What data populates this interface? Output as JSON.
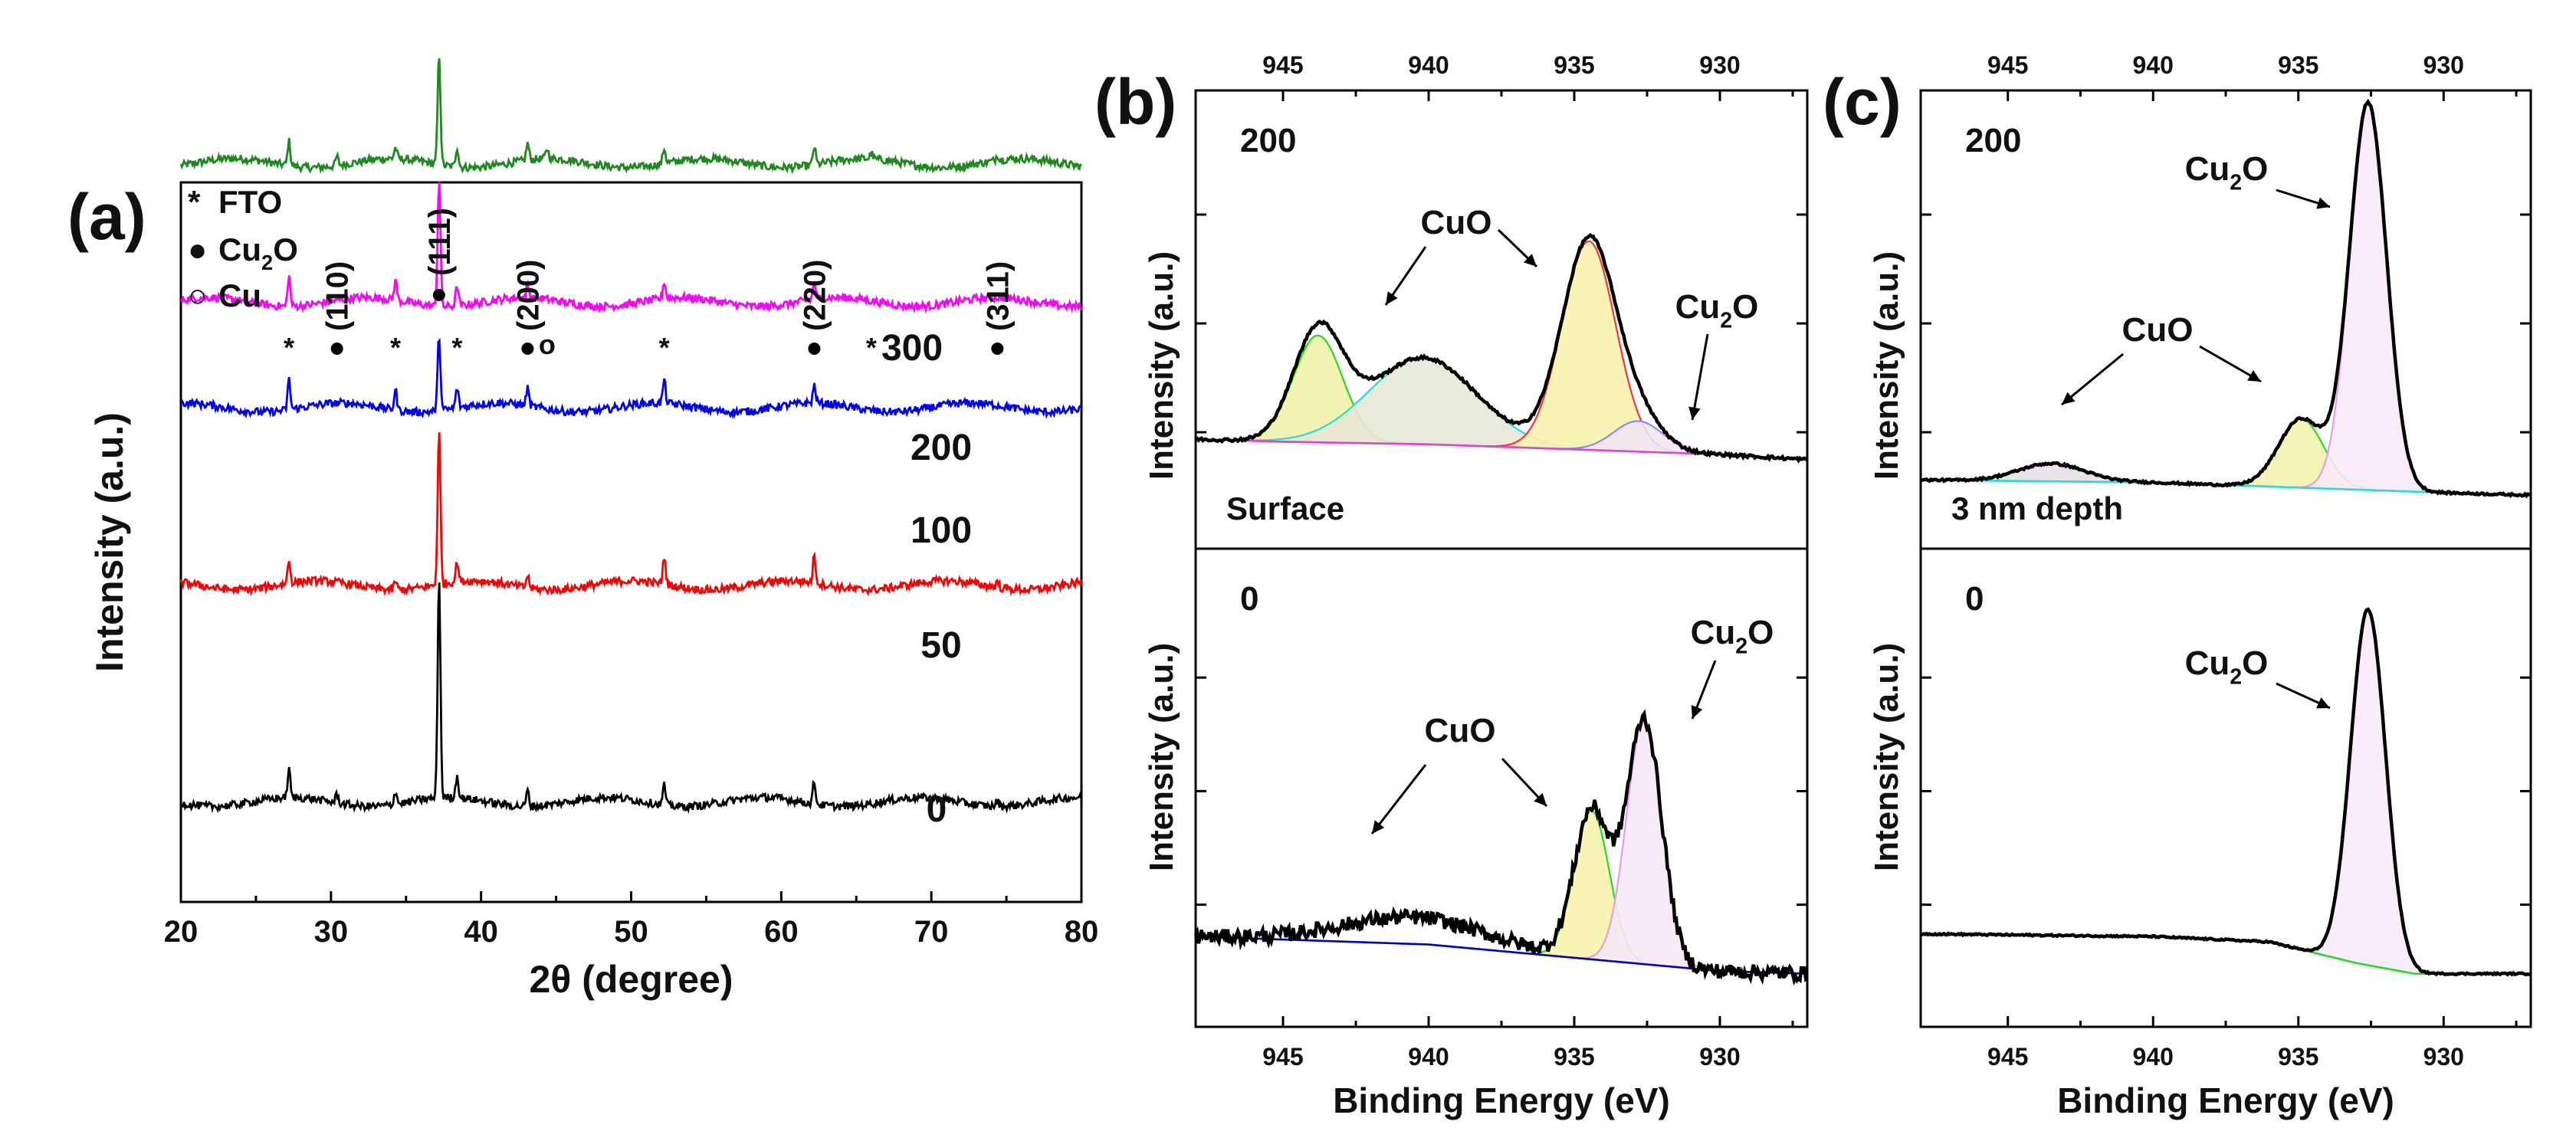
{
  "chart_data": [
    {
      "panel": "(a)",
      "type": "line",
      "xlabel": "2θ (degree)",
      "ylabel": "Intensity (a.u.)",
      "xlim": [
        20,
        80
      ],
      "xticks": [
        20,
        30,
        40,
        50,
        60,
        70,
        80
      ],
      "legend": [
        {
          "symbol": "*",
          "label": "FTO"
        },
        {
          "symbol": "●",
          "label": "Cu",
          "sub": "2",
          "tail": "O"
        },
        {
          "symbol": "○",
          "label": "Cu"
        }
      ],
      "series": [
        {
          "name": "300",
          "color": "#1e8a1e",
          "baseline": 6.05,
          "peaks": [
            [
              27.2,
              0.22
            ],
            [
              30.4,
              0.08
            ],
            [
              34.3,
              0.1
            ],
            [
              37.2,
              1.0
            ],
            [
              38.4,
              0.18
            ],
            [
              43.1,
              0.15
            ],
            [
              44.4,
              0.09
            ],
            [
              52.2,
              0.14
            ],
            [
              62.2,
              0.16
            ],
            [
              66.0,
              0.05
            ],
            [
              74.4,
              0.05
            ]
          ]
        },
        {
          "name": "200",
          "color": "#ff00ff",
          "baseline": 4.8,
          "peaks": [
            [
              27.2,
              0.27
            ],
            [
              34.3,
              0.18
            ],
            [
              37.2,
              1.15
            ],
            [
              38.4,
              0.18
            ],
            [
              43.1,
              0.11
            ],
            [
              52.2,
              0.15
            ],
            [
              62.2,
              0.15
            ]
          ]
        },
        {
          "name": "100",
          "color": "#0000ff",
          "baseline": 3.85,
          "peaks": [
            [
              27.2,
              0.27
            ],
            [
              34.3,
              0.18
            ],
            [
              37.2,
              0.68
            ],
            [
              38.4,
              0.18
            ],
            [
              43.1,
              0.16
            ],
            [
              52.2,
              0.21
            ],
            [
              62.2,
              0.16
            ]
          ]
        },
        {
          "name": "50",
          "color": "#ff0000",
          "baseline": 2.25,
          "peaks": [
            [
              27.2,
              0.2
            ],
            [
              34.3,
              0.08
            ],
            [
              37.2,
              1.38
            ],
            [
              38.4,
              0.18
            ],
            [
              43.1,
              0.11
            ],
            [
              52.2,
              0.25
            ],
            [
              62.2,
              0.25
            ],
            [
              74.4,
              0.05
            ]
          ]
        },
        {
          "name": "0",
          "color": "#000000",
          "baseline": 0.3,
          "peaks": [
            [
              27.2,
              0.25
            ],
            [
              30.4,
              0.08
            ],
            [
              34.3,
              0.12
            ],
            [
              37.2,
              2.0
            ],
            [
              38.4,
              0.2
            ],
            [
              43.1,
              0.14
            ],
            [
              52.2,
              0.18
            ],
            [
              62.2,
              0.2
            ],
            [
              74.4,
              0.05
            ]
          ]
        }
      ],
      "annotations": [
        {
          "text": "*",
          "x": 27.2
        },
        {
          "text": "(110)",
          "x": 30.4,
          "marker": "●"
        },
        {
          "text": "*",
          "x": 34.3
        },
        {
          "text": "(111)",
          "x": 37.2,
          "marker": "●"
        },
        {
          "text": "*",
          "x": 38.4
        },
        {
          "text": "(200)",
          "x": 43.1,
          "marker": "●"
        },
        {
          "text": "o",
          "x": 44.4
        },
        {
          "text": "*",
          "x": 52.2
        },
        {
          "text": "(220)",
          "x": 62.2,
          "marker": "●"
        },
        {
          "text": "*",
          "x": 66.0
        },
        {
          "text": "(311)",
          "x": 74.4,
          "marker": "●"
        }
      ]
    },
    {
      "panel": "(b)",
      "type": "line",
      "xlabel": "Binding Energy (eV)",
      "ylabel": "Intensity (a.u.)",
      "xlim": [
        948,
        927
      ],
      "xticks": [
        945,
        940,
        935,
        930
      ],
      "subplots": [
        {
          "label": "200",
          "sublabel": "Surface",
          "background": [
            [
              948,
              2.15
            ],
            [
              945,
              2.1
            ],
            [
              940,
              2.05
            ],
            [
              935,
              1.95
            ],
            [
              930,
              1.85
            ],
            [
              927,
              1.75
            ]
          ],
          "background_color": "#e040e0",
          "components": [
            {
              "center": 943.8,
              "height": 2.1,
              "width": 1.2,
              "color": "#22dd22",
              "fill": "#f2f2a8"
            },
            {
              "center": 940.2,
              "height": 1.7,
              "width": 2.6,
              "color": "#22dddd",
              "fill": "#e8e8d6"
            },
            {
              "center": 934.5,
              "height": 4.1,
              "width": 1.3,
              "color": "#ff3333",
              "fill": "#f7f3ad"
            },
            {
              "center": 932.8,
              "height": 0.6,
              "width": 1.2,
              "color": "#8888ff",
              "fill": "#f0e6f0"
            }
          ],
          "annotations": [
            {
              "text": "CuO"
            },
            {
              "text": "Cu",
              "sub": "2",
              "tail": "O"
            }
          ]
        },
        {
          "label": "0",
          "background": [
            [
              948,
              1.7
            ],
            [
              940,
              1.55
            ],
            [
              935,
              1.3
            ],
            [
              930,
              1.05
            ],
            [
              927,
              1.0
            ]
          ],
          "background_color": "#0000cc",
          "components": [
            {
              "center": 940.5,
              "height": 0.5,
              "width": 3.5,
              "color": "none",
              "fill": "none"
            },
            {
              "center": 934.4,
              "height": 2.8,
              "width": 0.85,
              "color": "#22dd22",
              "fill": "#f7f3ad"
            },
            {
              "center": 932.6,
              "height": 4.6,
              "width": 0.85,
              "color": "#e0a0e0",
              "fill": "#f6e8f6"
            }
          ],
          "annotations": [
            {
              "text": "CuO"
            },
            {
              "text": "Cu",
              "sub": "2",
              "tail": "O"
            }
          ]
        }
      ]
    },
    {
      "panel": "(c)",
      "type": "line",
      "xlabel": "Binding Energy (eV)",
      "ylabel": "Intensity (a.u.)",
      "xlim": [
        948,
        927
      ],
      "xticks": [
        945,
        940,
        935,
        930
      ],
      "subplots": [
        {
          "label": "200",
          "sublabel": "3 nm depth",
          "background": [
            [
              948,
              1.35
            ],
            [
              940,
              1.3
            ],
            [
              935,
              1.2
            ],
            [
              930,
              1.1
            ],
            [
              927,
              1.05
            ]
          ],
          "background_color": "#22dddd",
          "components": [
            {
              "center": 943.5,
              "height": 0.35,
              "width": 1.6,
              "color": "#3333ff",
              "fill": "#e6e0e6"
            },
            {
              "center": 934.9,
              "height": 1.35,
              "width": 1.1,
              "color": "#22dd22",
              "fill": "#f2f2b0"
            },
            {
              "center": 932.6,
              "height": 7.6,
              "width": 0.9,
              "color": "#e0a0e0",
              "fill": "#f7eaf7"
            }
          ],
          "annotations": [
            {
              "text": "CuO"
            },
            {
              "text": "Cu",
              "sub": "2",
              "tail": "O"
            }
          ]
        },
        {
          "label": "0",
          "background": [
            [
              948,
              1.75
            ],
            [
              940,
              1.7
            ],
            [
              936,
              1.6
            ],
            [
              933,
              1.2
            ],
            [
              931,
              1.0
            ],
            [
              927,
              1.0
            ]
          ],
          "background_color": "#22dd22",
          "components": [
            {
              "center": 932.6,
              "height": 6.7,
              "width": 0.85,
              "color": "#e0a0e0",
              "fill": "#f7eaf7"
            }
          ],
          "annotations": [
            {
              "text": "Cu",
              "sub": "2",
              "tail": "O"
            }
          ]
        }
      ]
    }
  ]
}
